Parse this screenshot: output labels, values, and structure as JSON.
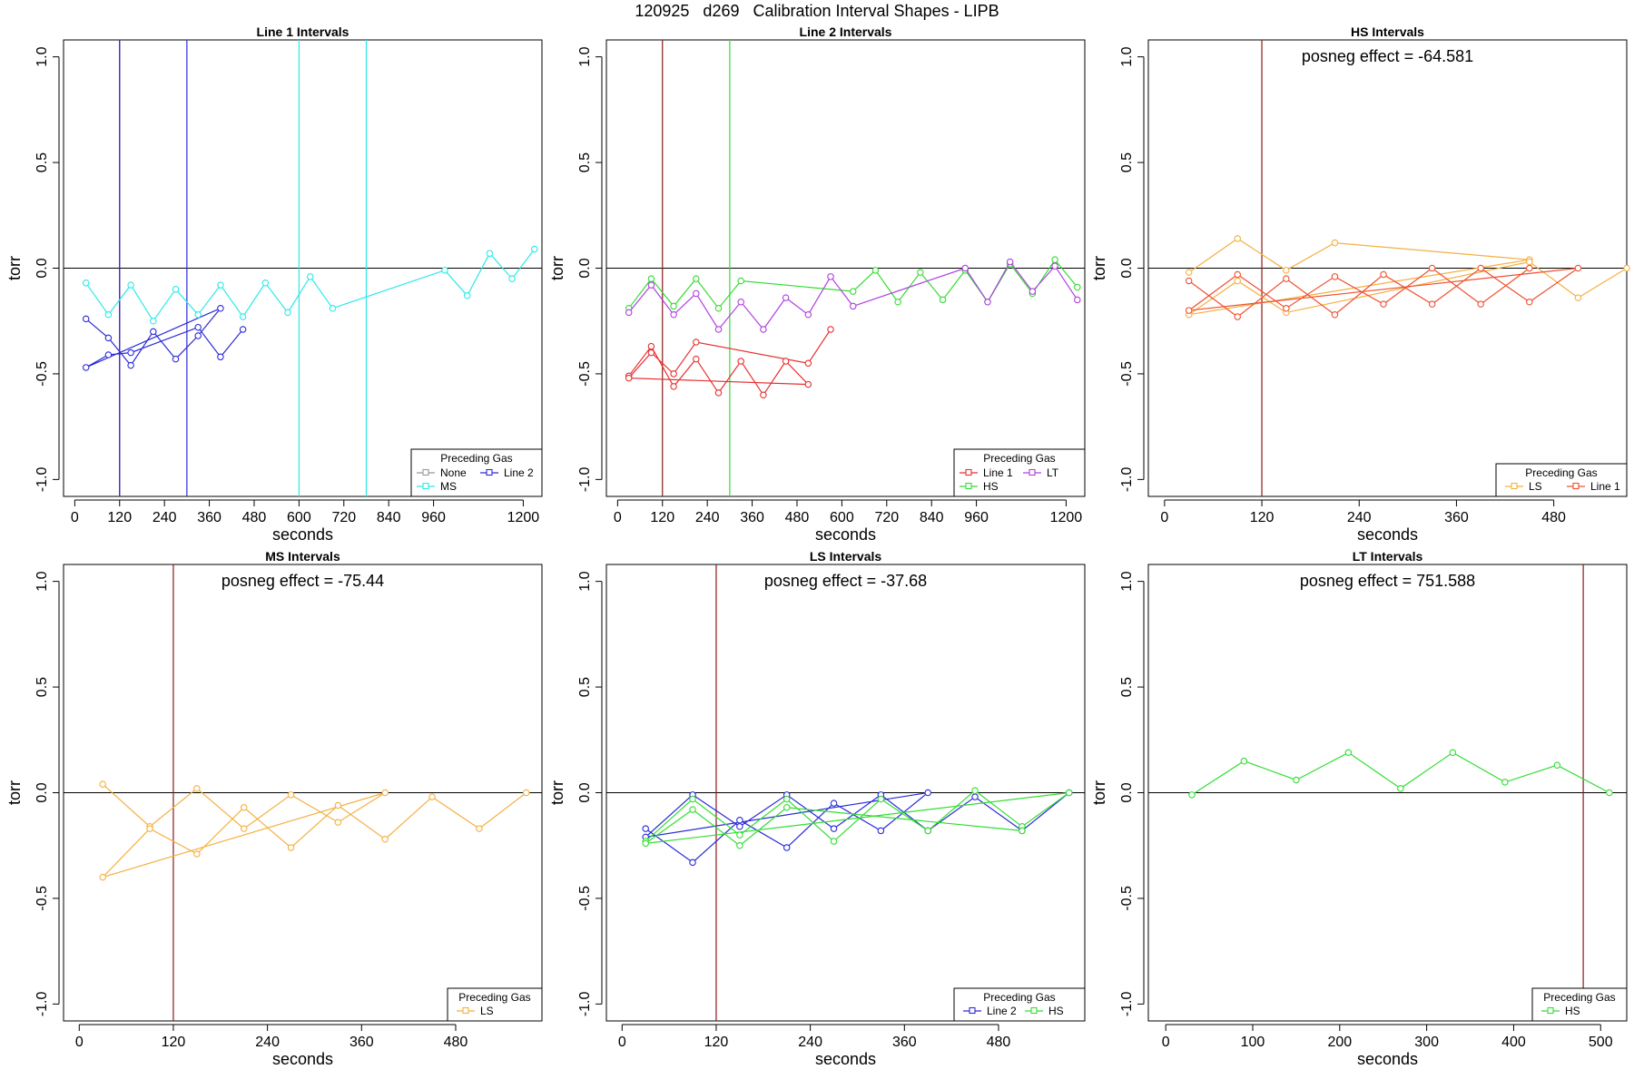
{
  "page_title": "120925   d269   Calibration Interval Shapes - LIPB",
  "colors": {
    "None": "#999999",
    "Line 2": "#2b2bd8",
    "MS": "#2ee8e8",
    "Line 1": "#e83030",
    "HS": "#33dd33",
    "LT": "#b040e0",
    "LS": "#f4b040",
    "Line 1 (HS)": "#f05030",
    "marker_red": "#8b1a1a"
  },
  "chart_data": [
    {
      "type": "line",
      "title": "Line 1 Intervals",
      "xlabel": "seconds",
      "ylabel": "torr",
      "xlim": [
        -30,
        1250
      ],
      "ylim": [
        -1.08,
        1.08
      ],
      "xticks": [
        0,
        120,
        240,
        360,
        480,
        600,
        720,
        840,
        960,
        1200
      ],
      "yticks": [
        -1.0,
        -0.5,
        0.0,
        0.5,
        1.0
      ],
      "annotation": "",
      "vlines": [
        {
          "x": 120,
          "series": "marker_red"
        },
        {
          "x": 120,
          "series": "Line 2"
        },
        {
          "x": 300,
          "series": "Line 2"
        },
        {
          "x": 600,
          "series": "MS"
        },
        {
          "x": 780,
          "series": "MS"
        }
      ],
      "legend": {
        "title": "Preceding Gas",
        "position": "bottom-right",
        "entries": [
          "None",
          "Line 2",
          "MS"
        ]
      },
      "series": [
        {
          "name": "Line 2",
          "points": [
            [
              30,
              -0.24
            ],
            [
              90,
              -0.33
            ],
            [
              150,
              -0.46
            ],
            [
              210,
              -0.3
            ],
            [
              270,
              -0.43
            ],
            [
              330,
              -0.32
            ],
            [
              390,
              -0.19
            ],
            [
              30,
              -0.47
            ],
            [
              90,
              -0.41
            ],
            [
              150,
              -0.4
            ],
            [
              330,
              -0.28
            ],
            [
              390,
              -0.42
            ],
            [
              450,
              -0.29
            ]
          ]
        },
        {
          "name": "MS",
          "points": [
            [
              30,
              -0.07
            ],
            [
              90,
              -0.22
            ],
            [
              150,
              -0.08
            ],
            [
              210,
              -0.25
            ],
            [
              270,
              -0.1
            ],
            [
              330,
              -0.22
            ],
            [
              390,
              -0.08
            ],
            [
              450,
              -0.23
            ],
            [
              510,
              -0.07
            ],
            [
              570,
              -0.21
            ],
            [
              630,
              -0.04
            ],
            [
              690,
              -0.19
            ],
            [
              990,
              -0.01
            ],
            [
              1050,
              -0.13
            ],
            [
              1110,
              0.07
            ],
            [
              1170,
              -0.05
            ],
            [
              1230,
              0.09
            ]
          ]
        }
      ]
    },
    {
      "type": "line",
      "title": "Line 2 Intervals",
      "xlabel": "seconds",
      "ylabel": "torr",
      "xlim": [
        -30,
        1250
      ],
      "ylim": [
        -1.08,
        1.08
      ],
      "xticks": [
        0,
        120,
        240,
        360,
        480,
        600,
        720,
        840,
        960,
        1200
      ],
      "yticks": [
        -1.0,
        -0.5,
        0.0,
        0.5,
        1.0
      ],
      "annotation": "",
      "vlines": [
        {
          "x": 120,
          "series": "marker_red"
        },
        {
          "x": 300,
          "series": "HS"
        }
      ],
      "legend": {
        "title": "Preceding Gas",
        "position": "bottom-right",
        "entries": [
          "Line 1",
          "LT",
          "HS"
        ]
      },
      "series": [
        {
          "name": "Line 1",
          "points": [
            [
              30,
              -0.51
            ],
            [
              90,
              -0.37
            ],
            [
              150,
              -0.56
            ],
            [
              210,
              -0.43
            ],
            [
              270,
              -0.59
            ],
            [
              330,
              -0.44
            ],
            [
              390,
              -0.6
            ],
            [
              450,
              -0.44
            ],
            [
              510,
              -0.55
            ],
            [
              30,
              -0.52
            ],
            [
              90,
              -0.4
            ],
            [
              150,
              -0.5
            ],
            [
              210,
              -0.35
            ],
            [
              510,
              -0.45
            ],
            [
              570,
              -0.29
            ]
          ]
        },
        {
          "name": "HS",
          "points": [
            [
              30,
              -0.19
            ],
            [
              90,
              -0.05
            ],
            [
              150,
              -0.18
            ],
            [
              210,
              -0.05
            ],
            [
              270,
              -0.19
            ],
            [
              330,
              -0.06
            ],
            [
              630,
              -0.11
            ],
            [
              690,
              -0.01
            ],
            [
              750,
              -0.16
            ],
            [
              810,
              -0.02
            ],
            [
              870,
              -0.15
            ],
            [
              930,
              -0.01
            ],
            [
              990,
              -0.16
            ],
            [
              1050,
              0.02
            ],
            [
              1110,
              -0.12
            ],
            [
              1170,
              0.04
            ],
            [
              1230,
              -0.09
            ]
          ]
        },
        {
          "name": "LT",
          "points": [
            [
              30,
              -0.21
            ],
            [
              90,
              -0.08
            ],
            [
              150,
              -0.22
            ],
            [
              210,
              -0.12
            ],
            [
              270,
              -0.29
            ],
            [
              330,
              -0.16
            ],
            [
              390,
              -0.29
            ],
            [
              450,
              -0.14
            ],
            [
              510,
              -0.22
            ],
            [
              570,
              -0.04
            ],
            [
              630,
              -0.18
            ],
            [
              930,
              0
            ],
            [
              990,
              -0.16
            ],
            [
              1050,
              0.03
            ],
            [
              1110,
              -0.11
            ],
            [
              1170,
              0.01
            ],
            [
              1230,
              -0.15
            ]
          ]
        }
      ]
    },
    {
      "type": "line",
      "title": "HS Intervals",
      "xlabel": "seconds",
      "ylabel": "torr",
      "xlim": [
        -20,
        570
      ],
      "ylim": [
        -1.08,
        1.08
      ],
      "xticks": [
        0,
        120,
        240,
        360,
        480
      ],
      "yticks": [
        -1.0,
        -0.5,
        0.0,
        0.5,
        1.0
      ],
      "annotation": "posneg effect = -64.581",
      "vlines": [
        {
          "x": 120,
          "series": "marker_red"
        }
      ],
      "legend": {
        "title": "Preceding Gas",
        "position": "bottom-right",
        "entries": [
          "LS",
          "Line 1 (HS)"
        ],
        "labels": [
          "LS",
          "Line 1"
        ]
      },
      "series": [
        {
          "name": "LS",
          "points": [
            [
              30,
              -0.02
            ],
            [
              90,
              0.14
            ],
            [
              150,
              -0.01
            ],
            [
              210,
              0.12
            ],
            [
              450,
              0.04
            ],
            [
              30,
              -0.22
            ],
            [
              90,
              -0.06
            ],
            [
              150,
              -0.21
            ],
            [
              450,
              0.03
            ],
            [
              510,
              -0.14
            ],
            [
              570,
              0
            ]
          ]
        },
        {
          "name": "Line 1 (HS)",
          "points": [
            [
              30,
              -0.06
            ],
            [
              90,
              -0.23
            ],
            [
              150,
              -0.05
            ],
            [
              210,
              -0.22
            ],
            [
              270,
              -0.03
            ],
            [
              330,
              -0.17
            ],
            [
              390,
              0
            ],
            [
              450,
              -0.16
            ],
            [
              510,
              0
            ],
            [
              30,
              -0.2
            ],
            [
              90,
              -0.03
            ],
            [
              150,
              -0.19
            ],
            [
              210,
              -0.04
            ],
            [
              270,
              -0.17
            ],
            [
              330,
              0
            ],
            [
              390,
              -0.17
            ],
            [
              450,
              0
            ]
          ]
        }
      ]
    },
    {
      "type": "line",
      "title": "MS Intervals",
      "xlabel": "seconds",
      "ylabel": "torr",
      "xlim": [
        -20,
        590
      ],
      "ylim": [
        -1.08,
        1.08
      ],
      "xticks": [
        0,
        120,
        240,
        360,
        480
      ],
      "yticks": [
        -1.0,
        -0.5,
        0.0,
        0.5,
        1.0
      ],
      "annotation": "posneg effect = -75.44",
      "vlines": [
        {
          "x": 120,
          "series": "marker_red"
        }
      ],
      "legend": {
        "title": "Preceding Gas",
        "position": "bottom-right",
        "entries": [
          "LS"
        ]
      },
      "series": [
        {
          "name": "LS",
          "points": [
            [
              30,
              0.04
            ],
            [
              90,
              -0.16
            ],
            [
              150,
              0.02
            ],
            [
              210,
              -0.17
            ],
            [
              270,
              -0.01
            ],
            [
              330,
              -0.14
            ],
            [
              390,
              0
            ],
            [
              30,
              -0.4
            ],
            [
              90,
              -0.17
            ],
            [
              150,
              -0.29
            ],
            [
              210,
              -0.07
            ],
            [
              270,
              -0.26
            ],
            [
              330,
              -0.06
            ],
            [
              390,
              -0.22
            ],
            [
              450,
              -0.02
            ],
            [
              510,
              -0.17
            ],
            [
              570,
              0
            ]
          ]
        }
      ]
    },
    {
      "type": "line",
      "title": "LS Intervals",
      "xlabel": "seconds",
      "ylabel": "torr",
      "xlim": [
        -20,
        590
      ],
      "ylim": [
        -1.08,
        1.08
      ],
      "xticks": [
        0,
        120,
        240,
        360,
        480
      ],
      "yticks": [
        -1.0,
        -0.5,
        0.0,
        0.5,
        1.0
      ],
      "annotation": "posneg effect = -37.68",
      "vlines": [
        {
          "x": 120,
          "series": "marker_red"
        }
      ],
      "legend": {
        "title": "Preceding Gas",
        "position": "bottom-right",
        "entries": [
          "Line 2",
          "HS"
        ]
      },
      "series": [
        {
          "name": "Line 2",
          "points": [
            [
              30,
              -0.17
            ],
            [
              90,
              -0.33
            ],
            [
              150,
              -0.13
            ],
            [
              210,
              -0.26
            ],
            [
              270,
              -0.05
            ],
            [
              330,
              -0.18
            ],
            [
              390,
              0
            ],
            [
              30,
              -0.21
            ],
            [
              90,
              -0.01
            ],
            [
              150,
              -0.16
            ],
            [
              210,
              -0.01
            ],
            [
              270,
              -0.17
            ],
            [
              330,
              -0.01
            ],
            [
              390,
              -0.18
            ],
            [
              450,
              -0.02
            ],
            [
              510,
              -0.18
            ],
            [
              570,
              0
            ]
          ]
        },
        {
          "name": "HS",
          "points": [
            [
              30,
              -0.23
            ],
            [
              90,
              -0.03
            ],
            [
              150,
              -0.2
            ],
            [
              210,
              -0.03
            ],
            [
              270,
              -0.23
            ],
            [
              330,
              -0.03
            ],
            [
              390,
              -0.18
            ],
            [
              450,
              0.01
            ],
            [
              510,
              -0.16
            ],
            [
              570,
              0
            ],
            [
              30,
              -0.24
            ],
            [
              90,
              -0.08
            ],
            [
              150,
              -0.25
            ],
            [
              210,
              -0.07
            ],
            [
              510,
              -0.18
            ]
          ]
        }
      ]
    },
    {
      "type": "line",
      "title": "LT Intervals",
      "xlabel": "seconds",
      "ylabel": "torr",
      "xlim": [
        -20,
        530
      ],
      "ylim": [
        -1.08,
        1.08
      ],
      "xticks": [
        0,
        100,
        200,
        300,
        400,
        500
      ],
      "yticks": [
        -1.0,
        -0.5,
        0.0,
        0.5,
        1.0
      ],
      "annotation": "posneg effect = 751.588",
      "vlines": [
        {
          "x": 480,
          "series": "marker_red"
        }
      ],
      "legend": {
        "title": "Preceding Gas",
        "position": "bottom-right",
        "entries": [
          "HS"
        ]
      },
      "series": [
        {
          "name": "HS",
          "points": [
            [
              30,
              -0.01
            ],
            [
              90,
              0.15
            ],
            [
              150,
              0.06
            ],
            [
              210,
              0.19
            ],
            [
              270,
              0.02
            ],
            [
              330,
              0.19
            ],
            [
              390,
              0.05
            ],
            [
              450,
              0.13
            ],
            [
              510,
              0
            ]
          ]
        }
      ]
    }
  ]
}
